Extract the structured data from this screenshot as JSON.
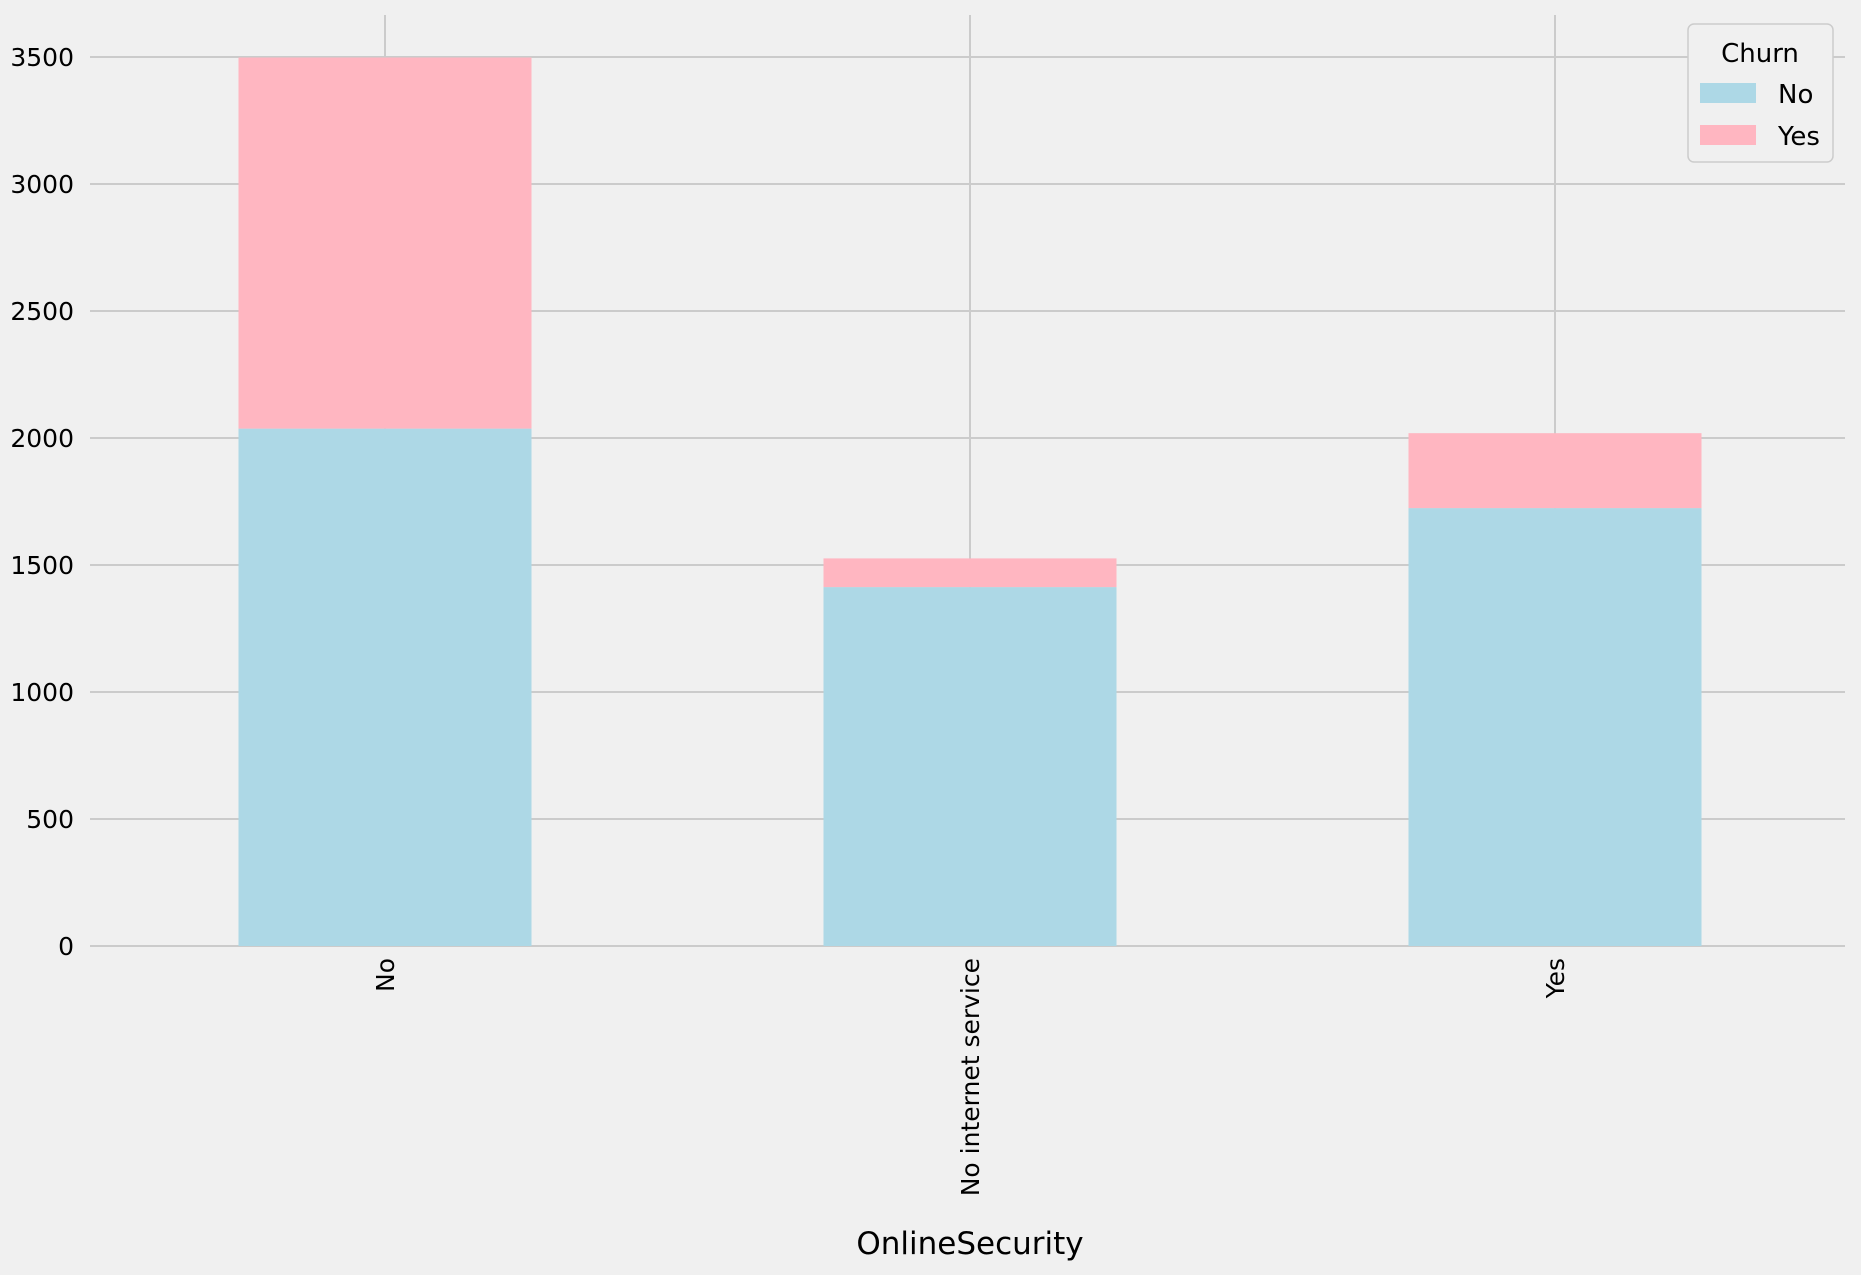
{
  "chart_data": {
    "type": "bar",
    "stacked": true,
    "categories": [
      "No",
      "No internet service",
      "Yes"
    ],
    "series": [
      {
        "name": "No",
        "values": [
          2037,
          1413,
          1724
        ],
        "color": "#add8e6"
      },
      {
        "name": "Yes",
        "values": [
          1461,
          113,
          295
        ],
        "color": "#ffb6c1"
      }
    ],
    "xlabel": "OnlineSecurity",
    "ylabel": "",
    "ylim": [
      0,
      3650
    ],
    "yticks": [
      0,
      500,
      1000,
      1500,
      2000,
      2500,
      3000,
      3500
    ],
    "legend": {
      "title": "Churn",
      "placement": "top-right"
    },
    "grid": true,
    "grid_color": "#cbcbcb",
    "background_color": "#f0f0f0"
  }
}
